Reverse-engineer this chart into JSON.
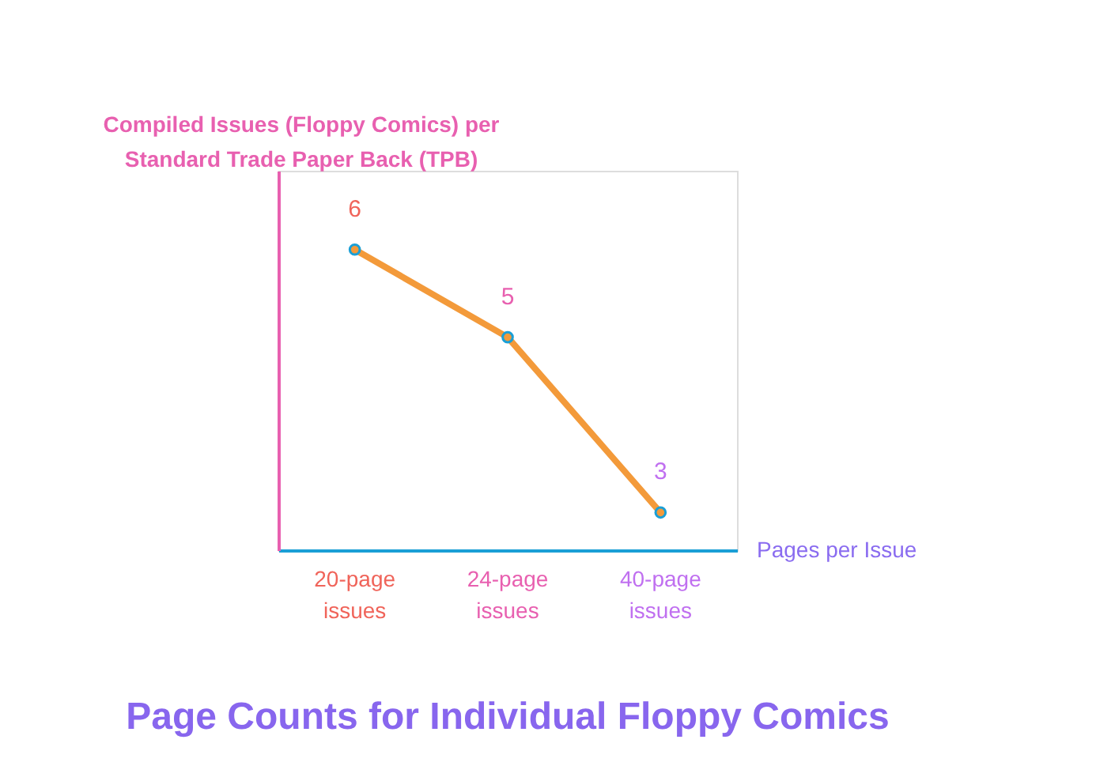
{
  "chart_data": {
    "type": "line",
    "title": "Page Counts for Individual Floppy Comics",
    "xlabel": "Pages per Issue",
    "ylabel": "Compiled Issues (Floppy Comics) per\nStandard Trade Paper Back (TPB)",
    "categories": [
      "20-page issues",
      "24-page issues",
      "40-page issues"
    ],
    "series": [
      {
        "color": "#f39a3a",
        "values": [
          6,
          5,
          3
        ]
      }
    ],
    "ylim": [
      2.57,
      6.9
    ],
    "data_labels": true,
    "marker": "circle",
    "line_style": "solid"
  }
}
